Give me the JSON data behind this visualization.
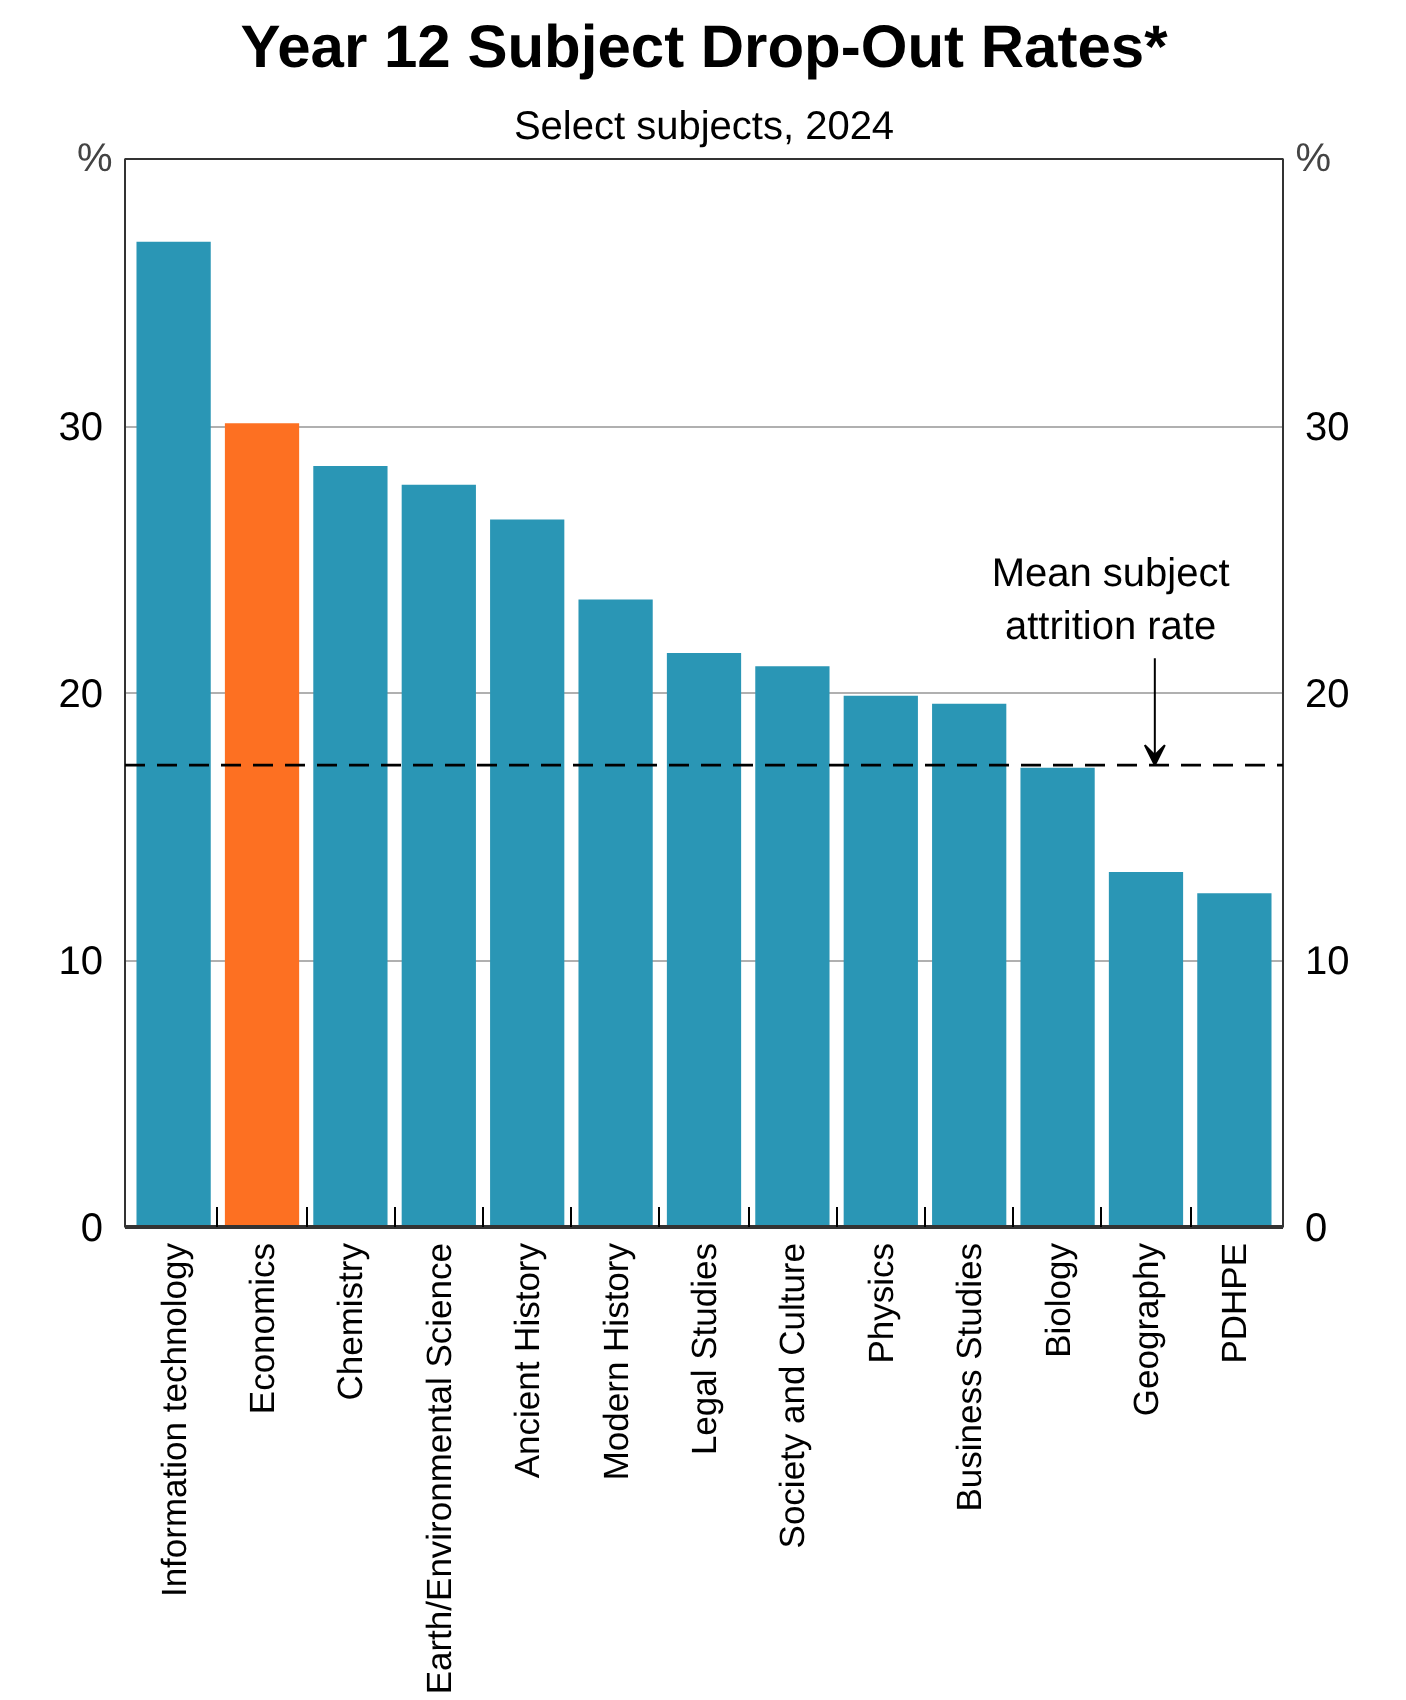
{
  "chart_data": {
    "type": "bar",
    "title": "Year 12 Subject Drop-Out Rates*",
    "subtitle": "Select subjects, 2024",
    "ylabel": "%",
    "y2label": "%",
    "categories": [
      "Information technology",
      "Economics",
      "Chemistry",
      "Earth/Environmental Science",
      "Ancient History",
      "Modern History",
      "Legal Studies",
      "Society and Culture",
      "Physics",
      "Business Studies",
      "Biology",
      "Geography",
      "PDHPE"
    ],
    "values": [
      36.9,
      30.1,
      28.5,
      27.8,
      26.5,
      23.5,
      21.5,
      21.0,
      19.9,
      19.6,
      17.2,
      13.3,
      12.5
    ],
    "colors": [
      "#2a96b5",
      "#fd7022",
      "#2a96b5",
      "#2a96b5",
      "#2a96b5",
      "#2a96b5",
      "#2a96b5",
      "#2a96b5",
      "#2a96b5",
      "#2a96b5",
      "#2a96b5",
      "#2a96b5",
      "#2a96b5"
    ],
    "ylim": [
      0,
      40
    ],
    "yticks": [
      0,
      10,
      20,
      30
    ],
    "y2lim": [
      0,
      40
    ],
    "y2ticks": [
      0,
      10,
      20,
      30
    ],
    "grid": "y",
    "ref_lines": [
      {
        "axis": "y",
        "value": 17.3,
        "label": "Mean subject attrition rate",
        "color": "#000000",
        "line_style": "dashed"
      }
    ]
  }
}
